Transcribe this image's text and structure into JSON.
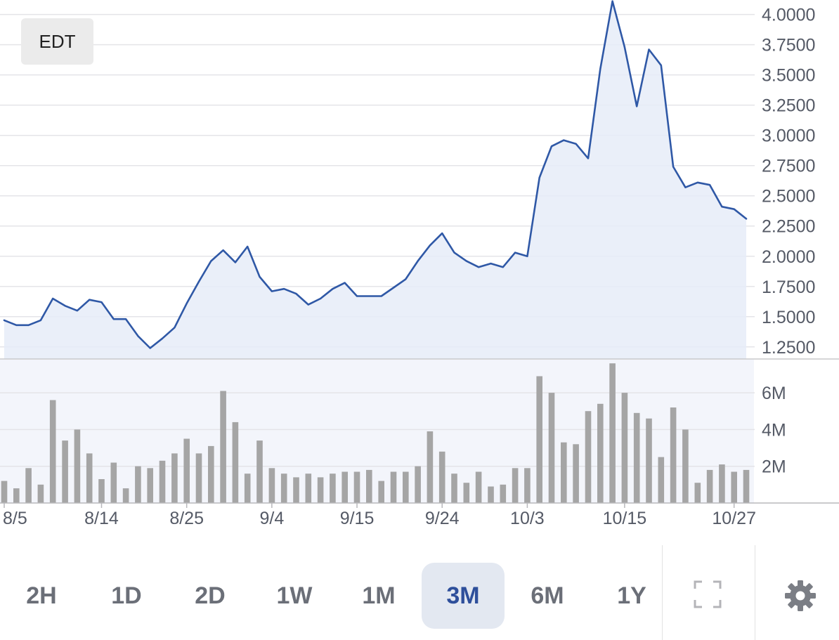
{
  "timezone_label": "EDT",
  "colors": {
    "line": "#2f58a6",
    "area": "#e6ecf8",
    "volume_bar": "#a5a5a5",
    "grid": "#e4e4e8",
    "active_range_bg": "#e3e8f1",
    "active_range_text": "#2e4f9b"
  },
  "range_buttons": [
    {
      "label": "2H",
      "active": false
    },
    {
      "label": "1D",
      "active": false
    },
    {
      "label": "2D",
      "active": false
    },
    {
      "label": "1W",
      "active": false
    },
    {
      "label": "1M",
      "active": false
    },
    {
      "label": "3M",
      "active": true
    },
    {
      "label": "6M",
      "active": false
    },
    {
      "label": "1Y",
      "active": false
    }
  ],
  "icons": {
    "fullscreen": "fullscreen-icon",
    "settings": "gear-icon"
  },
  "chart_data": {
    "type": "line",
    "price_axis": {
      "ticks": [
        "4.0000",
        "3.7500",
        "3.5000",
        "3.2500",
        "3.0000",
        "2.7500",
        "2.5000",
        "2.2500",
        "2.0000",
        "1.7500",
        "1.5000",
        "1.2500"
      ],
      "range": [
        1.15,
        4.12
      ]
    },
    "volume_axis": {
      "ticks": [
        "6M",
        "4M",
        "2M"
      ],
      "range": [
        0,
        7.8
      ]
    },
    "x_tick_labels": [
      "8/5",
      "8/14",
      "8/25",
      "9/4",
      "9/15",
      "9/24",
      "10/3",
      "10/15",
      "10/27"
    ],
    "x_tick_index": [
      0,
      8,
      15,
      22,
      29,
      36,
      43,
      51,
      60
    ],
    "series": [
      {
        "values": [
          1.47,
          1.43,
          1.43,
          1.47,
          1.65,
          1.59,
          1.55,
          1.64,
          1.62,
          1.48,
          1.48,
          1.34,
          1.24,
          1.32,
          1.41,
          1.61,
          1.79,
          1.96,
          2.05,
          1.95,
          2.08,
          1.83,
          1.71,
          1.73,
          1.69,
          1.6,
          1.65,
          1.73,
          1.78,
          1.67,
          1.67,
          1.67,
          1.74,
          1.81,
          1.96,
          2.09,
          2.19,
          2.03,
          1.96,
          1.91,
          1.94,
          1.91,
          2.03,
          2.0,
          2.65,
          2.91,
          2.96,
          2.93,
          2.81,
          3.55,
          4.11,
          3.73,
          3.24,
          3.71,
          3.58,
          2.74,
          2.57,
          2.61,
          2.59,
          2.41,
          2.39,
          2.31
        ],
        "volumes": [
          1.2,
          0.8,
          1.9,
          1.0,
          5.6,
          3.4,
          4.0,
          2.7,
          1.3,
          2.2,
          0.8,
          2.0,
          1.9,
          2.3,
          2.7,
          3.5,
          2.7,
          3.1,
          6.1,
          4.4,
          1.6,
          3.4,
          1.9,
          1.6,
          1.4,
          1.6,
          1.4,
          1.6,
          1.7,
          1.7,
          1.8,
          1.2,
          1.7,
          1.7,
          2.0,
          3.9,
          2.8,
          1.6,
          1.1,
          1.7,
          0.9,
          1.0,
          1.9,
          1.9,
          6.9,
          6.0,
          3.3,
          3.2,
          5.0,
          5.4,
          7.6,
          6.0,
          4.9,
          4.6,
          2.5,
          5.2,
          4.0,
          1.1,
          1.8,
          2.1,
          1.7,
          1.8
        ]
      }
    ],
    "grid": true
  }
}
